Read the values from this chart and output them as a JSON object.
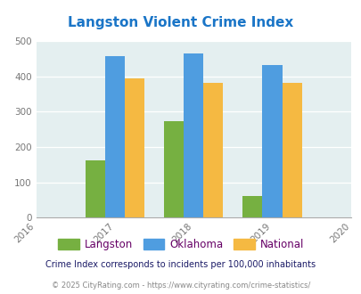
{
  "title": "Langston Violent Crime Index",
  "years": [
    2016,
    2017,
    2018,
    2019,
    2020
  ],
  "bar_years": [
    2017,
    2018,
    2019
  ],
  "langston": [
    163,
    272,
    60
  ],
  "oklahoma": [
    458,
    466,
    432
  ],
  "national": [
    394,
    382,
    381
  ],
  "langston_color": "#76b041",
  "oklahoma_color": "#4f9de0",
  "national_color": "#f5b942",
  "bg_color": "#e4eff0",
  "title_color": "#1a75c7",
  "ylim": [
    0,
    500
  ],
  "yticks": [
    0,
    100,
    200,
    300,
    400,
    500
  ],
  "bar_width": 0.25,
  "footnote1": "Crime Index corresponds to incidents per 100,000 inhabitants",
  "footnote2": "© 2025 CityRating.com - https://www.cityrating.com/crime-statistics/",
  "legend_labels": [
    "Langston",
    "Oklahoma",
    "National"
  ],
  "legend_text_color": "#660066",
  "footnote1_color": "#1a1a66",
  "footnote2_color": "#888888"
}
